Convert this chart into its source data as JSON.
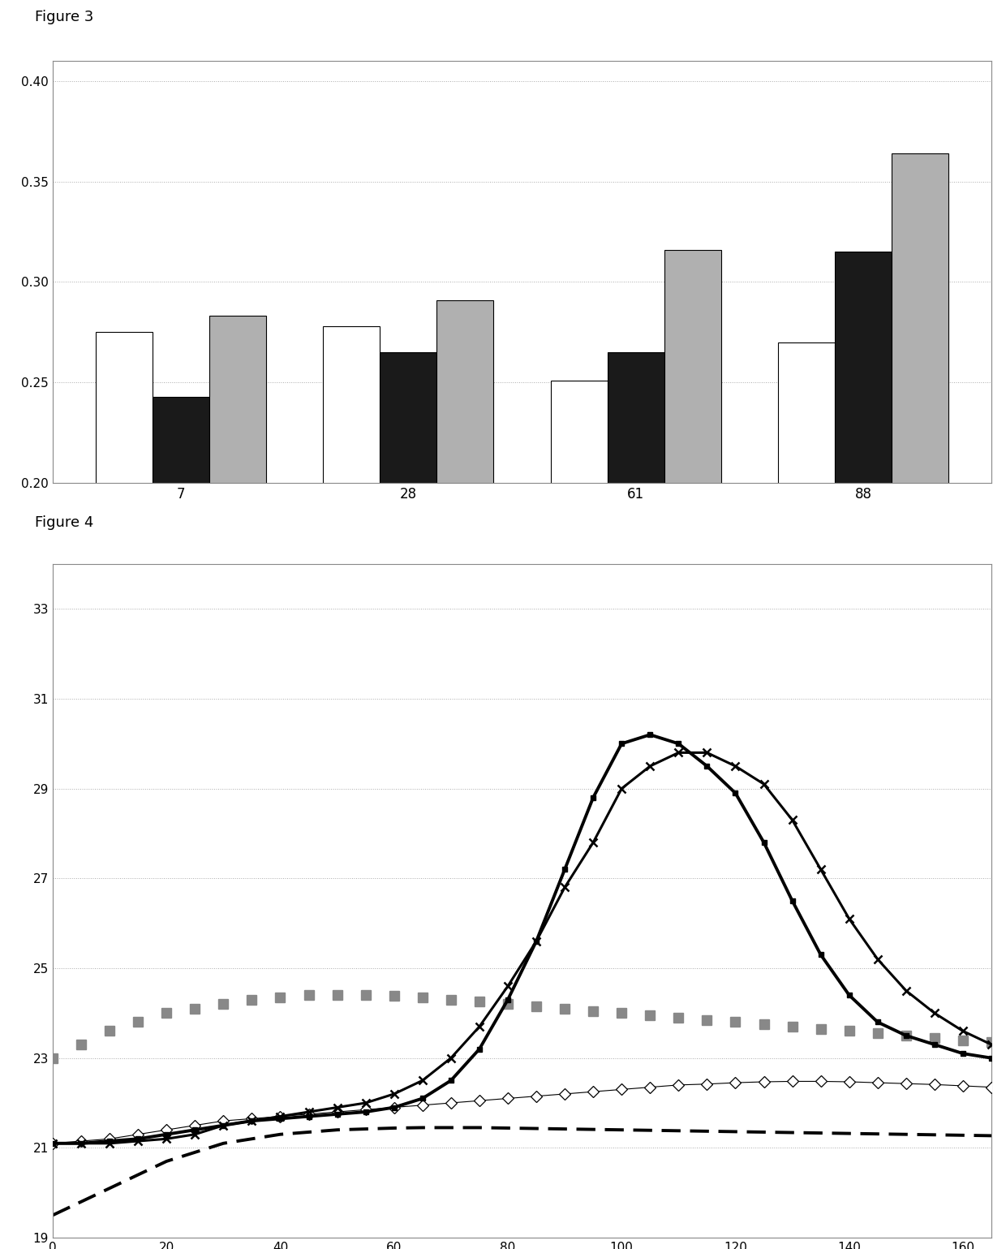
{
  "fig3_categories": [
    7,
    28,
    61,
    88
  ],
  "fig3_white": [
    0.275,
    0.278,
    0.251,
    0.27
  ],
  "fig3_dark": [
    0.243,
    0.265,
    0.265,
    0.315
  ],
  "fig3_gray": [
    0.283,
    0.291,
    0.316,
    0.364
  ],
  "fig3_ylim": [
    0.2,
    0.41
  ],
  "fig3_yticks": [
    0.2,
    0.25,
    0.3,
    0.35,
    0.4
  ],
  "fig3_bar_width": 0.25,
  "fig4_x": [
    0,
    5,
    10,
    15,
    20,
    25,
    30,
    35,
    40,
    45,
    50,
    55,
    60,
    65,
    70,
    75,
    80,
    85,
    90,
    95,
    100,
    105,
    110,
    115,
    120,
    125,
    130,
    135,
    140,
    145,
    150,
    155,
    160,
    165
  ],
  "fig4_line1_solid_square": [
    21.1,
    21.1,
    21.15,
    21.2,
    21.3,
    21.4,
    21.5,
    21.6,
    21.65,
    21.7,
    21.75,
    21.8,
    21.9,
    22.1,
    22.5,
    23.2,
    24.3,
    25.6,
    27.2,
    28.8,
    30.0,
    30.2,
    30.0,
    29.5,
    28.9,
    27.8,
    26.5,
    25.3,
    24.4,
    23.8,
    23.5,
    23.3,
    23.1,
    23.0
  ],
  "fig4_line2_x_mark": [
    21.1,
    21.1,
    21.1,
    21.15,
    21.2,
    21.3,
    21.5,
    21.6,
    21.7,
    21.8,
    21.9,
    22.0,
    22.2,
    22.5,
    23.0,
    23.7,
    24.6,
    25.6,
    26.8,
    27.8,
    29.0,
    29.5,
    29.8,
    29.8,
    29.5,
    29.1,
    28.3,
    27.2,
    26.1,
    25.2,
    24.5,
    24.0,
    23.6,
    23.3
  ],
  "fig4_line3_gray_dash": [
    23.0,
    23.3,
    23.6,
    23.8,
    24.0,
    24.1,
    24.2,
    24.3,
    24.35,
    24.4,
    24.4,
    24.4,
    24.38,
    24.35,
    24.3,
    24.25,
    24.2,
    24.15,
    24.1,
    24.05,
    24.0,
    23.95,
    23.9,
    23.85,
    23.8,
    23.75,
    23.7,
    23.65,
    23.6,
    23.55,
    23.5,
    23.45,
    23.4,
    23.35
  ],
  "fig4_line4_diamond": [
    21.1,
    21.15,
    21.2,
    21.3,
    21.4,
    21.5,
    21.6,
    21.65,
    21.7,
    21.75,
    21.8,
    21.85,
    21.9,
    21.95,
    22.0,
    22.05,
    22.1,
    22.15,
    22.2,
    22.25,
    22.3,
    22.35,
    22.4,
    22.42,
    22.45,
    22.47,
    22.48,
    22.48,
    22.47,
    22.45,
    22.43,
    22.41,
    22.38,
    22.35
  ],
  "fig4_line5_black_dash": [
    19.5,
    19.8,
    20.1,
    20.4,
    20.7,
    20.9,
    21.1,
    21.2,
    21.3,
    21.35,
    21.4,
    21.42,
    21.44,
    21.45,
    21.45,
    21.45,
    21.44,
    21.43,
    21.42,
    21.41,
    21.4,
    21.39,
    21.38,
    21.37,
    21.36,
    21.35,
    21.34,
    21.33,
    21.32,
    21.31,
    21.3,
    21.29,
    21.28,
    21.27
  ],
  "fig4_ylim": [
    19,
    34
  ],
  "fig4_yticks": [
    19,
    21,
    23,
    25,
    27,
    29,
    31,
    33
  ],
  "fig4_xlim": [
    0,
    165
  ],
  "fig4_xticks": [
    0,
    20,
    40,
    60,
    80,
    100,
    120,
    140,
    160
  ],
  "background_color": "#ffffff",
  "figure_label_3": "Figure 3",
  "figure_label_4": "Figure 4"
}
